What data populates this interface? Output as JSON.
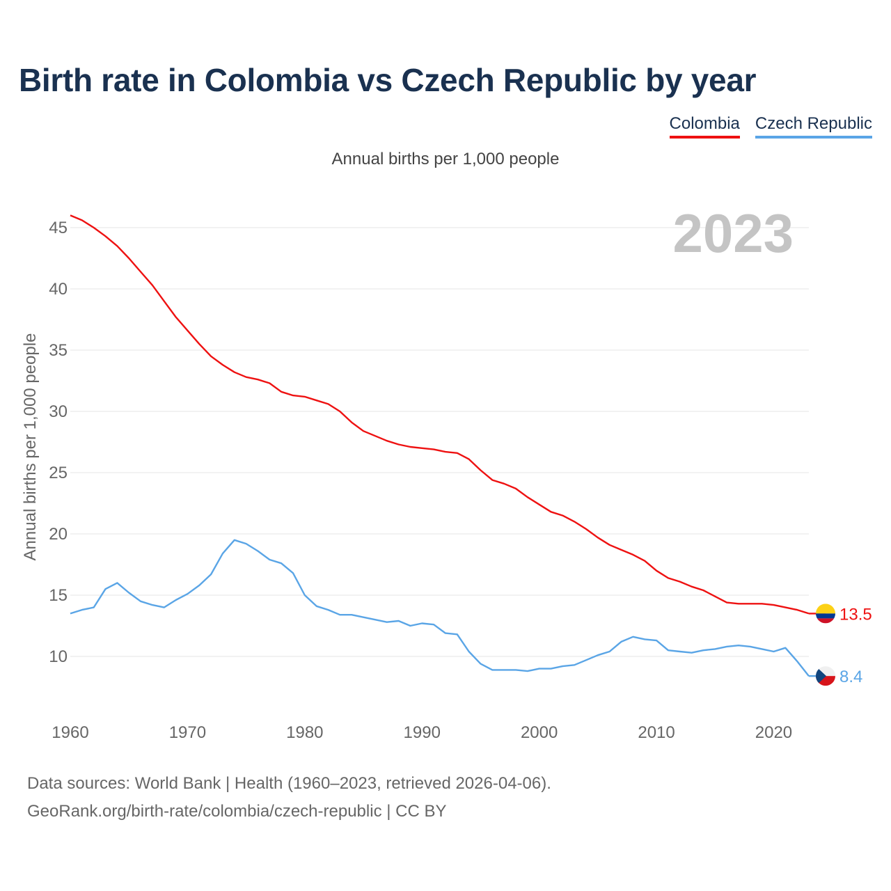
{
  "title": "Birth rate in Colombia vs Czech Republic by year",
  "subtitle": "Annual births per 1,000 people",
  "footer": {
    "line1": "Data sources: World Bank | Health (1960–2023, retrieved 2026-04-06).",
    "line2": "GeoRank.org/birth-rate/colombia/czech-republic | CC BY"
  },
  "colors": {
    "colombia": "#ee1111",
    "czech": "#5aa5e6",
    "grid": "#e6e6e6",
    "tick": "#666666",
    "year_watermark": "#c4c4c4"
  },
  "chart_data": {
    "type": "line",
    "title": "Birth rate in Colombia vs Czech Republic by year",
    "subtitle": "Annual births per 1,000 people",
    "xlabel": "",
    "ylabel": "Annual births per 1,000 people",
    "xlim": [
      1960,
      2023
    ],
    "ylim": [
      6,
      47
    ],
    "x_ticks": [
      1960,
      1970,
      1980,
      1990,
      2000,
      2010,
      2020
    ],
    "y_ticks": [
      10,
      15,
      20,
      25,
      30,
      35,
      40,
      45
    ],
    "current_year": "2023",
    "legend": [
      "Colombia",
      "Czech Republic"
    ],
    "legend_position": "top-right",
    "x": [
      1960,
      1961,
      1962,
      1963,
      1964,
      1965,
      1966,
      1967,
      1968,
      1969,
      1970,
      1971,
      1972,
      1973,
      1974,
      1975,
      1976,
      1977,
      1978,
      1979,
      1980,
      1981,
      1982,
      1983,
      1984,
      1985,
      1986,
      1987,
      1988,
      1989,
      1990,
      1991,
      1992,
      1993,
      1994,
      1995,
      1996,
      1997,
      1998,
      1999,
      2000,
      2001,
      2002,
      2003,
      2004,
      2005,
      2006,
      2007,
      2008,
      2009,
      2010,
      2011,
      2012,
      2013,
      2014,
      2015,
      2016,
      2017,
      2018,
      2019,
      2020,
      2021,
      2022,
      2023
    ],
    "series": [
      {
        "name": "Colombia",
        "end_label": "13.5",
        "values": [
          46.0,
          45.6,
          45.0,
          44.3,
          43.5,
          42.5,
          41.4,
          40.3,
          39.0,
          37.7,
          36.6,
          35.5,
          34.5,
          33.8,
          33.2,
          32.8,
          32.6,
          32.3,
          31.6,
          31.3,
          31.2,
          30.9,
          30.6,
          30.0,
          29.1,
          28.4,
          28.0,
          27.6,
          27.3,
          27.1,
          27.0,
          26.9,
          26.7,
          26.6,
          26.1,
          25.2,
          24.4,
          24.1,
          23.7,
          23.0,
          22.4,
          21.8,
          21.5,
          21.0,
          20.4,
          19.7,
          19.1,
          18.7,
          18.3,
          17.8,
          17.0,
          16.4,
          16.1,
          15.7,
          15.4,
          14.9,
          14.4,
          14.3,
          14.3,
          14.3,
          14.2,
          14.0,
          13.8,
          13.5
        ]
      },
      {
        "name": "Czech Republic",
        "end_label": "8.4",
        "values": [
          13.5,
          13.8,
          14.0,
          15.5,
          16.0,
          15.2,
          14.5,
          14.2,
          14.0,
          14.6,
          15.1,
          15.8,
          16.7,
          18.4,
          19.5,
          19.2,
          18.6,
          17.9,
          17.6,
          16.8,
          15.0,
          14.1,
          13.8,
          13.4,
          13.4,
          13.2,
          13.0,
          12.8,
          12.9,
          12.5,
          12.7,
          12.6,
          11.9,
          11.8,
          10.4,
          9.4,
          8.9,
          8.9,
          8.9,
          8.8,
          9.0,
          9.0,
          9.2,
          9.3,
          9.7,
          10.1,
          10.4,
          11.2,
          11.6,
          11.4,
          11.3,
          10.5,
          10.4,
          10.3,
          10.5,
          10.6,
          10.8,
          10.9,
          10.8,
          10.6,
          10.4,
          10.7,
          9.6,
          8.4
        ]
      }
    ]
  }
}
